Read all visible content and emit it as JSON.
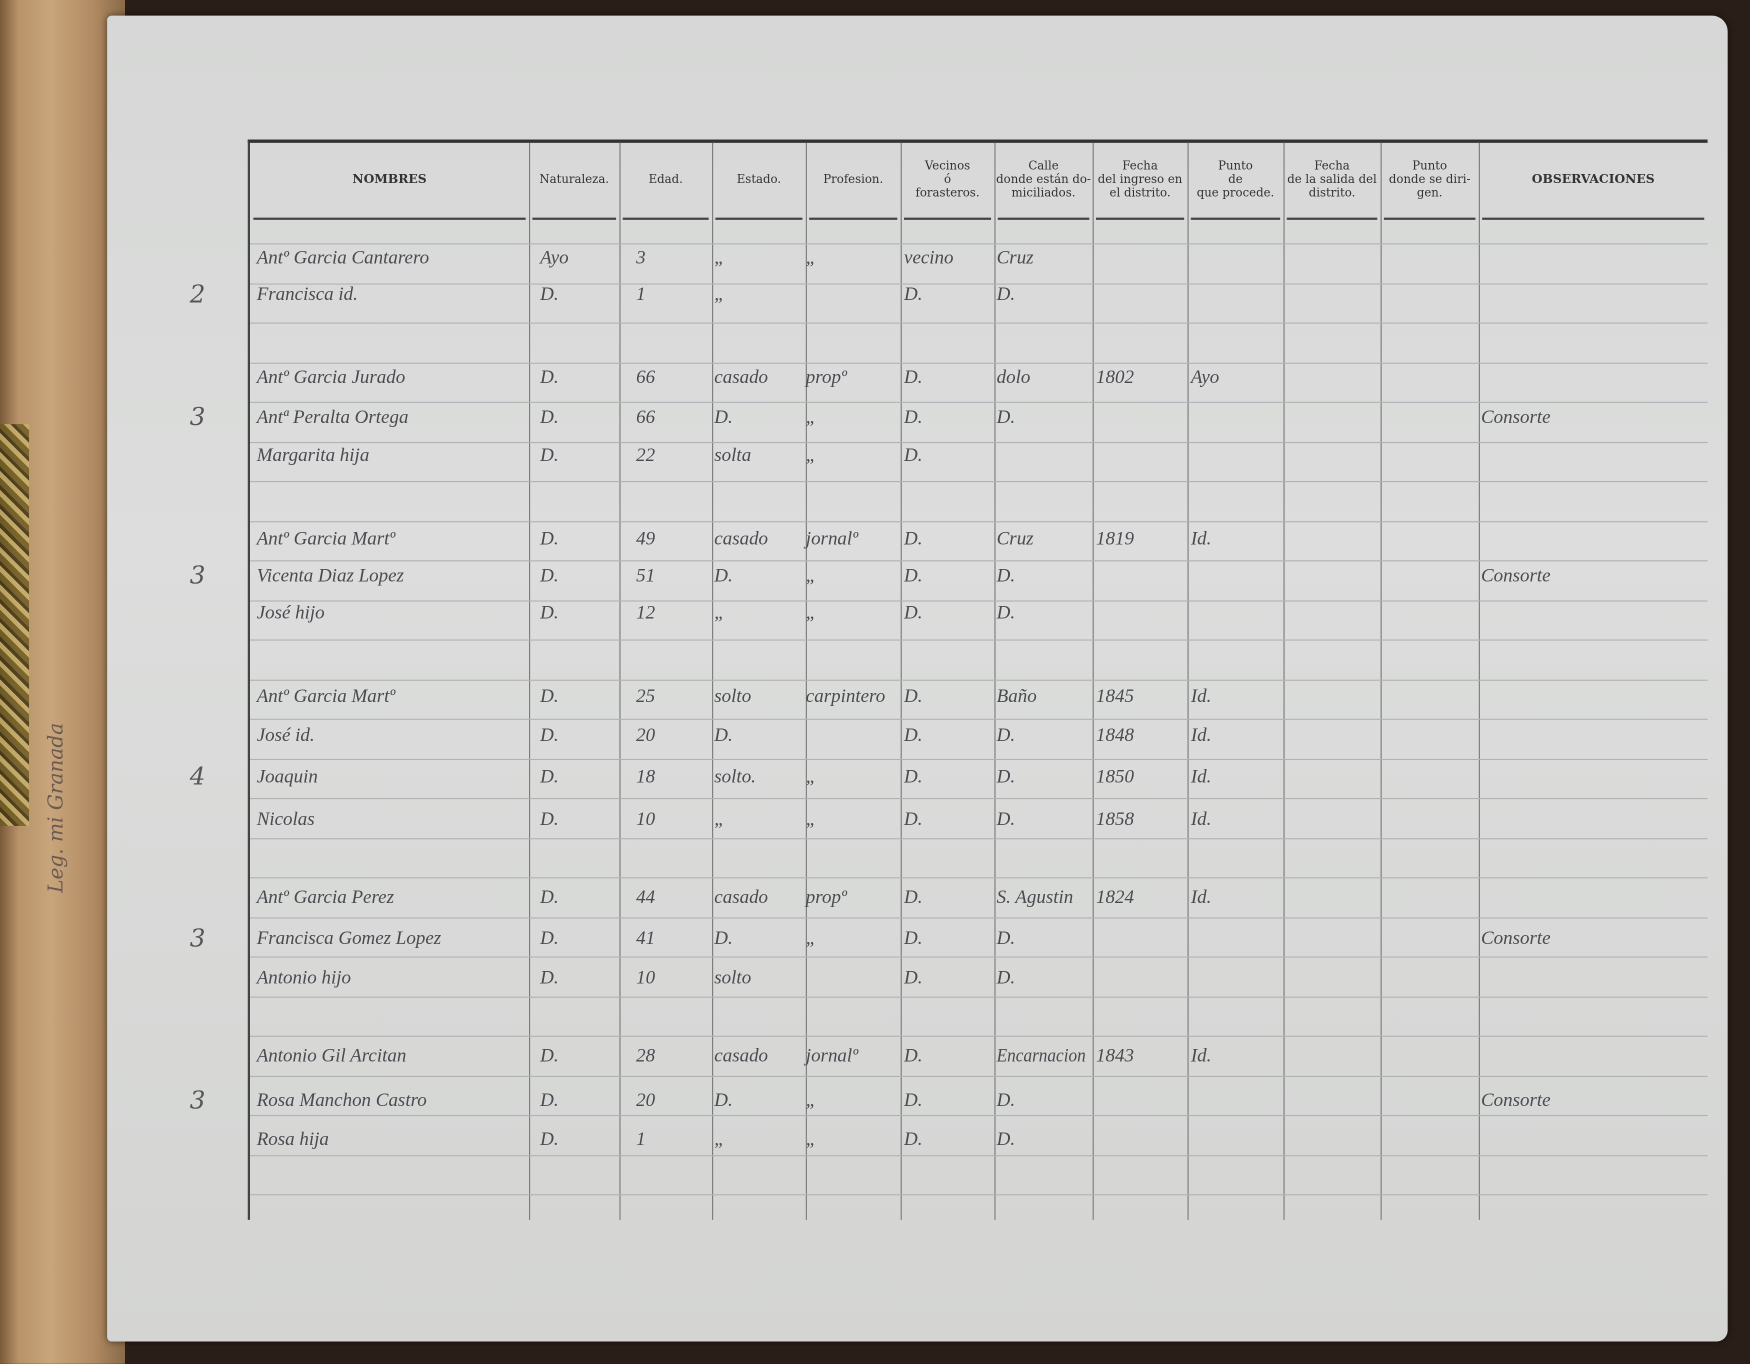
{
  "document": {
    "margin_note": "Leg. mi Granada",
    "headers": [
      "NOMBRES",
      "Naturaleza.",
      "Edad.",
      "Estado.",
      "Profesion.",
      "Vecinos\nó\nforasteros.",
      "Calle\ndonde están do-\nmiciliados.",
      "Fecha\ndel ingreso en\nel distrito.",
      "Punto\nde\nque procede.",
      "Fecha\nde la salida del\ndistrito.",
      "Punto\ndonde se diri-\ngen.",
      "OBSERVACIONES"
    ],
    "families": [
      {
        "count": "2",
        "rows": [
          [
            "Antº Garcia Cantarero",
            "Ayo",
            "3",
            "„",
            "„",
            "vecino",
            "Cruz",
            "",
            "",
            "",
            "",
            ""
          ],
          [
            "Francisca id.",
            "D.",
            "1",
            "„",
            "",
            "D.",
            "D.",
            "",
            "",
            "",
            "",
            ""
          ]
        ]
      },
      {
        "count": "3",
        "rows": [
          [
            "Antº Garcia Jurado",
            "D.",
            "66",
            "casado",
            "propº",
            "D.",
            "dolo",
            "1802",
            "Ayo",
            "",
            "",
            ""
          ],
          [
            "Antª Peralta Ortega",
            "D.",
            "66",
            "D.",
            "„",
            "D.",
            "D.",
            "",
            "",
            "",
            "",
            "Consorte"
          ],
          [
            "Margarita hija",
            "D.",
            "22",
            "solta",
            "„",
            "D.",
            "",
            "",
            "",
            "",
            "",
            ""
          ]
        ]
      },
      {
        "count": "3",
        "rows": [
          [
            "Antº Garcia Martº",
            "D.",
            "49",
            "casado",
            "jornalº",
            "D.",
            "Cruz",
            "1819",
            "Id.",
            "",
            "",
            ""
          ],
          [
            "Vicenta Diaz Lopez",
            "D.",
            "51",
            "D.",
            "„",
            "D.",
            "D.",
            "",
            "",
            "",
            "",
            "Consorte"
          ],
          [
            "José hijo",
            "D.",
            "12",
            "„",
            "„",
            "D.",
            "D.",
            "",
            "",
            "",
            "",
            ""
          ]
        ]
      },
      {
        "count": "4",
        "rows": [
          [
            "Antº Garcia Martº",
            "D.",
            "25",
            "solto",
            "carpintero",
            "D.",
            "Baño",
            "1845",
            "Id.",
            "",
            "",
            ""
          ],
          [
            "José id.",
            "D.",
            "20",
            "D.",
            "",
            "D.",
            "D.",
            "1848",
            "Id.",
            "",
            "",
            ""
          ],
          [
            "Joaquin",
            "D.",
            "18",
            "solto.",
            "„",
            "D.",
            "D.",
            "1850",
            "Id.",
            "",
            "",
            ""
          ],
          [
            "Nicolas",
            "D.",
            "10",
            "„",
            "„",
            "D.",
            "D.",
            "1858",
            "Id.",
            "",
            "",
            ""
          ]
        ]
      },
      {
        "count": "3",
        "rows": [
          [
            "Antº Garcia Perez",
            "D.",
            "44",
            "casado",
            "propº",
            "D.",
            "S. Agustin",
            "1824",
            "Id.",
            "",
            "",
            ""
          ],
          [
            "Francisca Gomez Lopez",
            "D.",
            "41",
            "D.",
            "„",
            "D.",
            "D.",
            "",
            "",
            "",
            "",
            "Consorte"
          ],
          [
            "Antonio hijo",
            "D.",
            "10",
            "solto",
            "",
            "D.",
            "D.",
            "",
            "",
            "",
            "",
            ""
          ]
        ]
      },
      {
        "count": "3",
        "rows": [
          [
            "Antonio Gil Arcitan",
            "D.",
            "28",
            "casado",
            "jornalº",
            "D.",
            "Encarnacion",
            "1843",
            "Id.",
            "",
            "",
            ""
          ],
          [
            "Rosa Manchon Castro",
            "D.",
            "20",
            "D.",
            "„",
            "D.",
            "D.",
            "",
            "",
            "",
            "",
            "Consorte"
          ],
          [
            "Rosa hija",
            "D.",
            "1",
            "„",
            "„",
            "D.",
            "D.",
            "",
            "",
            "",
            "",
            ""
          ]
        ]
      }
    ]
  }
}
